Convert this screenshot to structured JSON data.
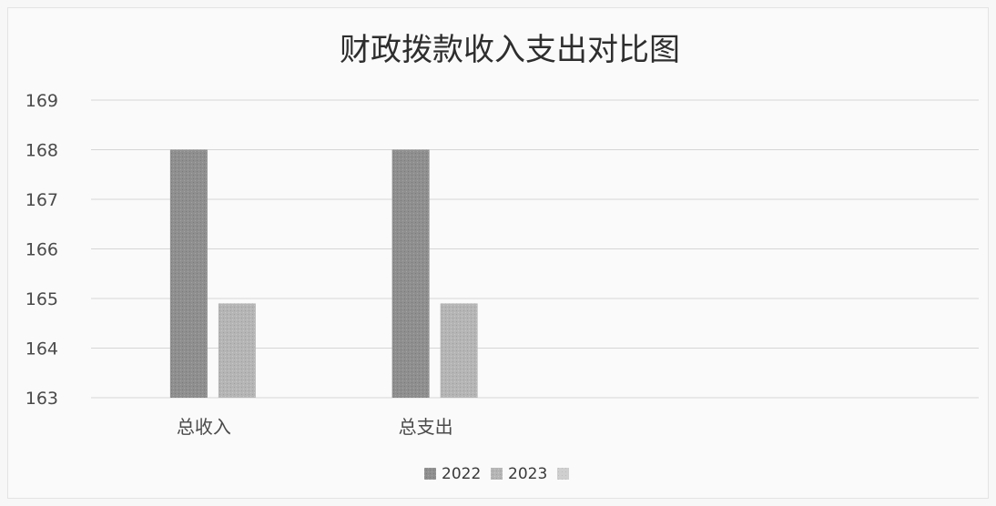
{
  "chart_data": {
    "type": "bar",
    "title": "财政拨款收入支出对比图",
    "categories": [
      "总收入",
      "总支出",
      "",
      ""
    ],
    "series": [
      {
        "name": "2022",
        "values": [
          168,
          168,
          null,
          null
        ],
        "color": "#8f8f8f"
      },
      {
        "name": "2023",
        "values": [
          164.9,
          164.9,
          null,
          null
        ],
        "color": "#b5b5b5"
      },
      {
        "name": "",
        "values": [
          null,
          null,
          null,
          null
        ],
        "color": "#cfcfcf"
      }
    ],
    "yticks": [
      163,
      164,
      165,
      166,
      167,
      168,
      169
    ],
    "ylim": [
      163,
      169
    ],
    "grid": true,
    "legend_position": "bottom",
    "xlabel": "",
    "ylabel": ""
  }
}
